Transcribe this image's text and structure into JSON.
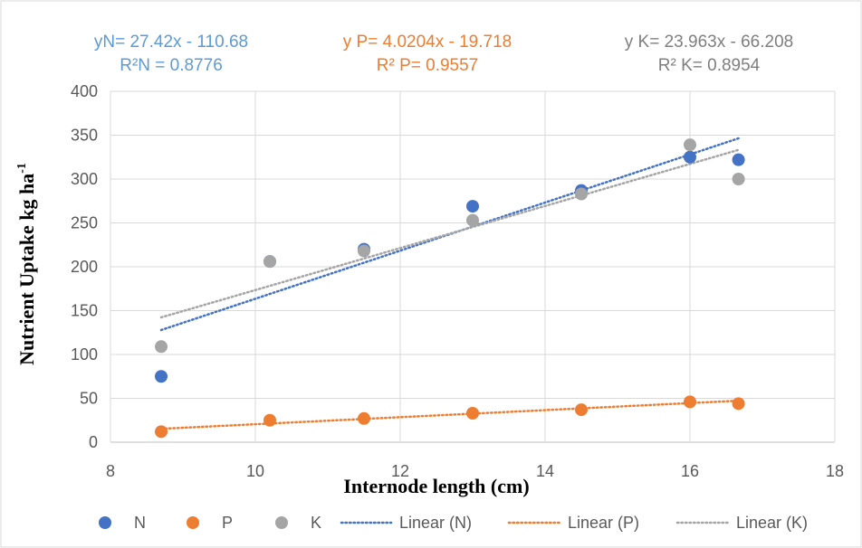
{
  "chart_data": {
    "type": "scatter",
    "xlabel": "Internode length (cm)",
    "ylabel": "Nutrient Uptake kg ha",
    "ylabel_superscript": "-1",
    "xlim": [
      8,
      18
    ],
    "ylim": [
      0,
      400
    ],
    "x_ticks": [
      "8",
      "10",
      "12",
      "14",
      "16",
      "18"
    ],
    "y_ticks": [
      "0",
      "50",
      "100",
      "150",
      "200",
      "250",
      "300",
      "350",
      "400"
    ],
    "grid": true,
    "legend_position": "bottom",
    "x": [
      8.7,
      10.2,
      11.5,
      13.0,
      14.5,
      16.0,
      16.67
    ],
    "series": [
      {
        "name": "N",
        "color": "#4472C4",
        "values": [
          75,
          206,
          220,
          269,
          287,
          325,
          322
        ]
      },
      {
        "name": "P",
        "color": "#ED7D31",
        "values": [
          12,
          25,
          27,
          33,
          37,
          46,
          44
        ]
      },
      {
        "name": "K",
        "color": "#A5A5A5",
        "values": [
          109,
          206,
          218,
          253,
          283,
          339,
          300
        ]
      }
    ],
    "trendlines": [
      {
        "name": "Linear (N)",
        "series": "N",
        "color": "#4472C4",
        "slope": 27.42,
        "intercept": -110.68,
        "x_range": [
          8.7,
          16.67
        ]
      },
      {
        "name": "Linear (P)",
        "series": "P",
        "color": "#ED7D31",
        "slope": 4.0204,
        "intercept": -19.718,
        "x_range": [
          8.7,
          16.67
        ]
      },
      {
        "name": "Linear (K)",
        "series": "K",
        "color": "#A5A5A5",
        "slope": 23.963,
        "intercept": -66.208,
        "x_range": [
          8.7,
          16.67
        ]
      }
    ],
    "annotations": [
      {
        "line1": "yN= 27.42x - 110.68",
        "line2": "R²N = 0.8776",
        "color": "#5B9BD5"
      },
      {
        "line1": "y P= 4.0204x - 19.718",
        "line2": "R² P= 0.9557",
        "color": "#ED7D31"
      },
      {
        "line1": "y K= 23.963x - 66.208",
        "line2": "R² K= 0.8954",
        "color": "#7F7F7F"
      }
    ]
  }
}
